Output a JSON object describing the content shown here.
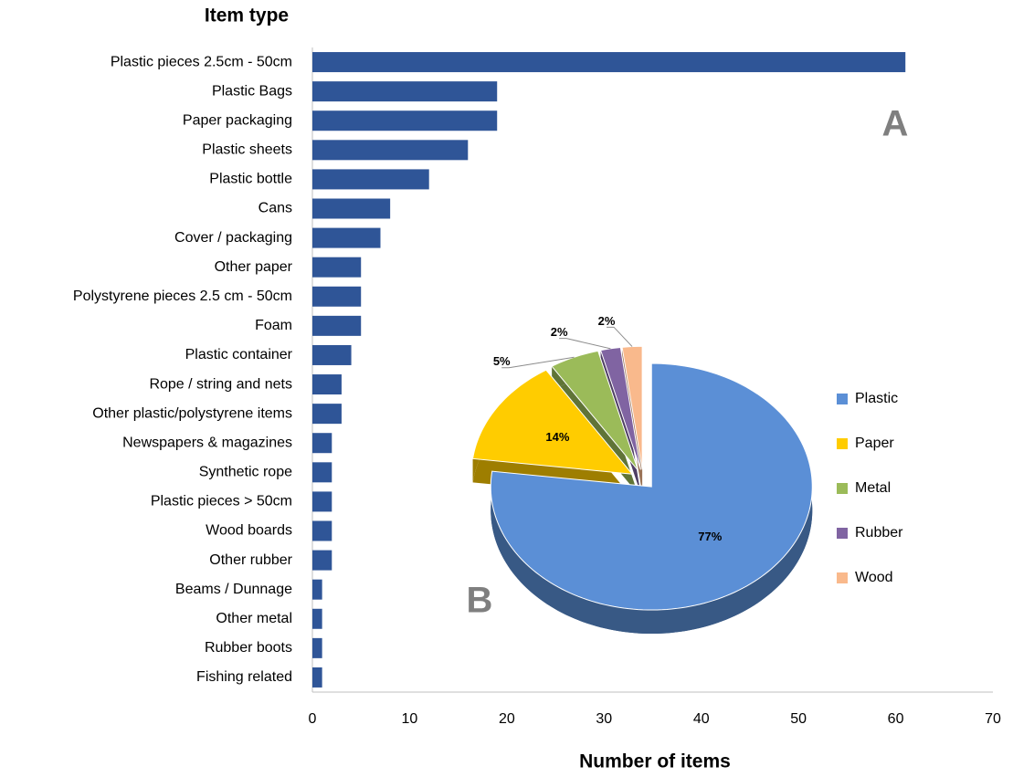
{
  "chart_data": [
    {
      "type": "bar",
      "orientation": "horizontal",
      "y_label": "Item type",
      "x_label": "Number of items",
      "annotation": "A",
      "categories": [
        "Plastic pieces 2.5cm - 50cm",
        "Plastic Bags",
        "Paper packaging",
        "Plastic sheets",
        "Plastic bottle",
        "Cans",
        "Cover / packaging",
        "Other paper",
        "Polystyrene pieces 2.5 cm - 50cm",
        "Foam",
        "Plastic container",
        "Rope / string and nets",
        "Other plastic/polystyrene items",
        "Newspapers & magazines",
        "Synthetic rope",
        "Plastic pieces > 50cm",
        "Wood boards",
        "Other rubber",
        "Beams / Dunnage",
        "Other metal",
        "Rubber boots",
        "Fishing related"
      ],
      "values": [
        61,
        19,
        19,
        16,
        12,
        8,
        7,
        5,
        5,
        5,
        4,
        3,
        3,
        2,
        2,
        2,
        2,
        2,
        1,
        1,
        1,
        1
      ],
      "color": "#2f5597",
      "xlim": [
        0,
        70
      ],
      "xticks": [
        0,
        10,
        20,
        30,
        40,
        50,
        60,
        70
      ],
      "grid": false
    },
    {
      "type": "pie",
      "annotation": "B",
      "categories": [
        "Plastic",
        "Paper",
        "Metal",
        "Rubber",
        "Wood"
      ],
      "values": [
        77,
        14,
        5,
        2,
        2
      ],
      "value_labels": [
        "77%",
        "14%",
        "5%",
        "2%",
        "2%"
      ],
      "colors": [
        "#5b8fd6",
        "#ffcc00",
        "#9bbb59",
        "#8064a2",
        "#f9b98c"
      ],
      "legend": "right"
    }
  ]
}
